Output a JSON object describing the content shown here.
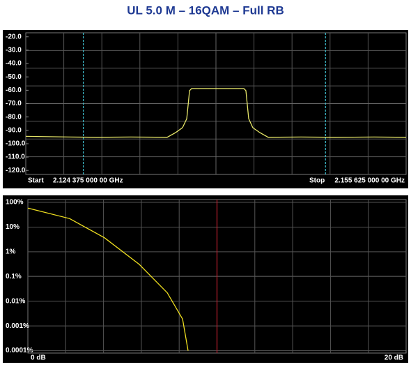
{
  "title": "UL 5.0 M – 16QAM – Full RB",
  "chart_data": [
    {
      "type": "line",
      "start_label": "Start",
      "start_value": "2.124 375 000 00 GHz",
      "stop_label": "Stop",
      "stop_value": "2.155 625 000 00 GHz",
      "x": [
        2.124375,
        2.128,
        2.1303,
        2.133,
        2.13599,
        2.13668,
        2.13725,
        2.1376,
        2.13783,
        2.138,
        2.14,
        2.14229,
        2.14246,
        2.14269,
        2.14303,
        2.14361,
        2.14429,
        2.147,
        2.14973,
        2.153,
        2.155625
      ],
      "series": [
        {
          "color": "#e8e86a",
          "values": [
            -94.5,
            -95,
            -95.2,
            -95,
            -95.2,
            -91.7,
            -88,
            -81.3,
            -60.3,
            -58.7,
            -58.7,
            -58.7,
            -60.3,
            -81.3,
            -88,
            -91.7,
            -95.2,
            -95,
            -95.2,
            -95,
            -95.2
          ]
        }
      ],
      "xlim": [
        2.124375,
        2.155625
      ],
      "markers_x": [
        2.1291,
        2.149
      ],
      "marker_color": "#3fc0d0",
      "ylim": [
        -123,
        -17
      ],
      "yticks": [
        {
          "value": -20,
          "label": "-20.0"
        },
        {
          "value": -30,
          "label": "-30.0"
        },
        {
          "value": -40,
          "label": "-40.0"
        },
        {
          "value": -50,
          "label": "-50.0"
        },
        {
          "value": -60,
          "label": "-60.0"
        },
        {
          "value": -70,
          "label": "-70.0"
        },
        {
          "value": -80,
          "label": "-80.0"
        },
        {
          "value": -90,
          "label": "-90.0"
        },
        {
          "value": -100,
          "label": "-100.0"
        },
        {
          "value": -110,
          "label": "-110.0"
        },
        {
          "value": -120,
          "label": "-120.0"
        }
      ]
    },
    {
      "type": "line",
      "x": [
        0,
        2.21,
        4.05,
        5.89,
        7.37,
        8.18,
        8.47
      ],
      "series": [
        {
          "color": "#f0e020",
          "values": [
            59,
            22,
            3.7,
            0.31,
            0.022,
            0.0019,
            0.0001
          ]
        }
      ],
      "xlim": [
        0,
        20
      ],
      "xticks": [
        {
          "value": 0,
          "label": "0 dB"
        },
        {
          "value": 20,
          "label": "20 dB"
        }
      ],
      "markers_x": [
        10
      ],
      "marker_color": "#c02030",
      "log_y": true,
      "ylim": [
        8e-05,
        130
      ],
      "yticks": [
        {
          "value": 100,
          "label": "100%"
        },
        {
          "value": 10,
          "label": "10%"
        },
        {
          "value": 1,
          "label": "1%"
        },
        {
          "value": 0.1,
          "label": "0.1%"
        },
        {
          "value": 0.01,
          "label": "0.01%"
        },
        {
          "value": 0.001,
          "label": "0.001%"
        },
        {
          "value": 0.0001,
          "label": "0.0001%"
        }
      ],
      "grid": true
    }
  ]
}
